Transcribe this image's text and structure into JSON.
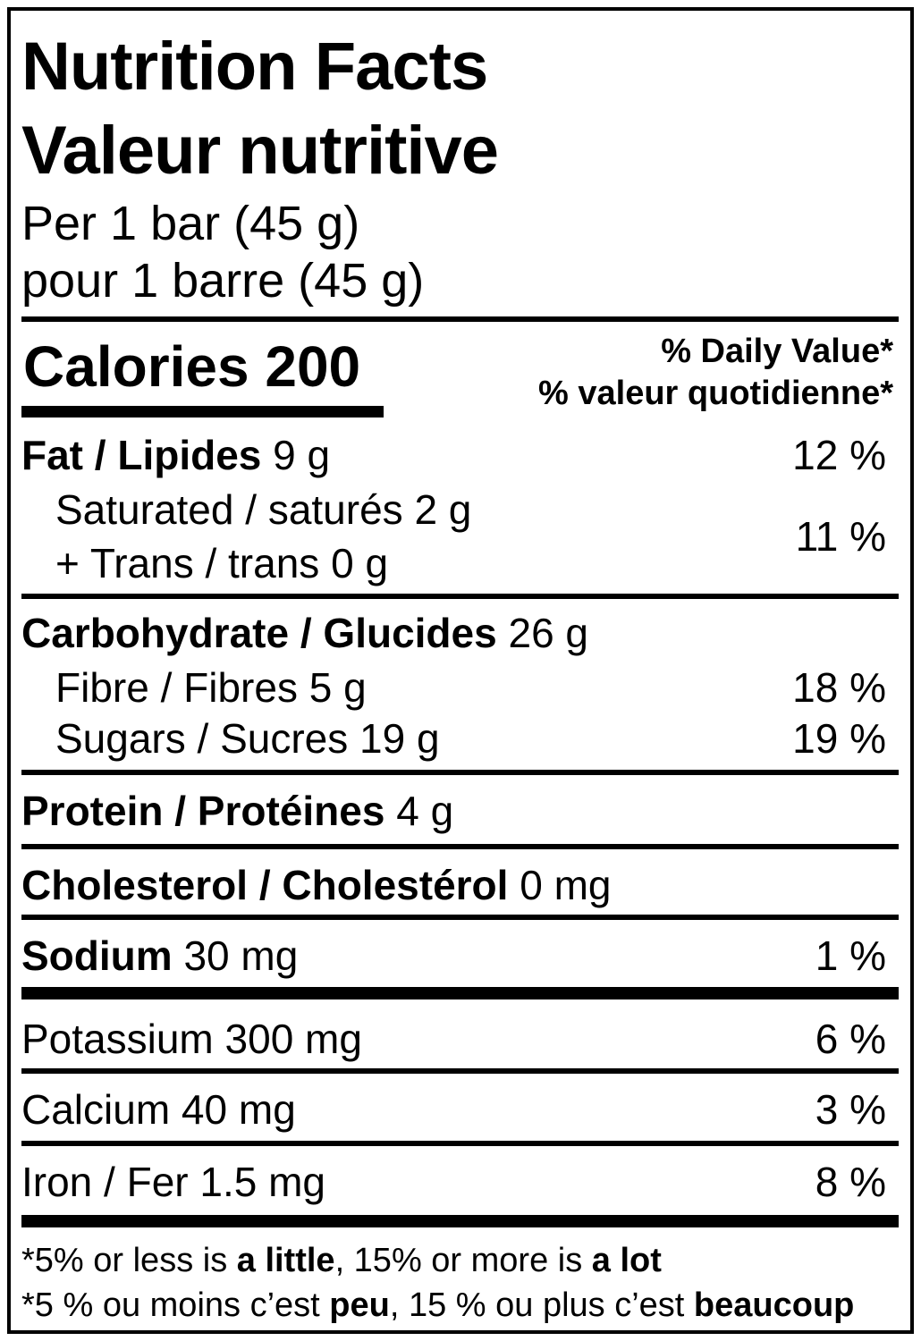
{
  "nutrition_label": {
    "title_en": "Nutrition Facts",
    "title_fr": "Valeur nutritive",
    "serving_en": "Per 1 bar (45 g)",
    "serving_fr": "pour 1 barre (45 g)",
    "calories": "Calories 200",
    "daily_value_header_en": "% Daily Value*",
    "daily_value_header_fr": "% valeur quotidienne*",
    "rows": {
      "fat": {
        "name": "Fat / Lipides",
        "amount": " 9 g",
        "dv": "12 %"
      },
      "saturated_trans": {
        "line1": "Saturated / saturés 2 g",
        "line2": "+ Trans / trans 0 g",
        "dv": "11 %"
      },
      "carbohydrate": {
        "name": "Carbohydrate / Glucides",
        "amount": " 26 g"
      },
      "fibre": {
        "name": "Fibre / Fibres 5 g",
        "dv": "18 %"
      },
      "sugars": {
        "name": "Sugars / Sucres 19 g",
        "dv": "19 %"
      },
      "protein": {
        "name": "Protein / Protéines",
        "amount": " 4 g"
      },
      "cholesterol": {
        "name": "Cholesterol / Cholestérol",
        "amount": " 0 mg"
      },
      "sodium": {
        "name": "Sodium",
        "amount": " 30 mg",
        "dv": "1 %"
      },
      "potassium": {
        "name": "Potassium 300 mg",
        "dv": "6 %"
      },
      "calcium": {
        "name": "Calcium 40 mg",
        "dv": "3 %"
      },
      "iron": {
        "name": "Iron / Fer 1.5 mg",
        "dv": "8 %"
      }
    },
    "footnote_en": {
      "t1": "*5% or less is ",
      "b1": "a little",
      "t2": ", 15% or more is ",
      "b2": "a lot"
    },
    "footnote_fr": {
      "t1": "*5 % ou moins c’est ",
      "b1": "peu",
      "t2": ", 15 % ou plus c’est ",
      "b2": "beaucoup"
    },
    "colors": {
      "ink": "#000000",
      "background": "#ffffff"
    }
  }
}
